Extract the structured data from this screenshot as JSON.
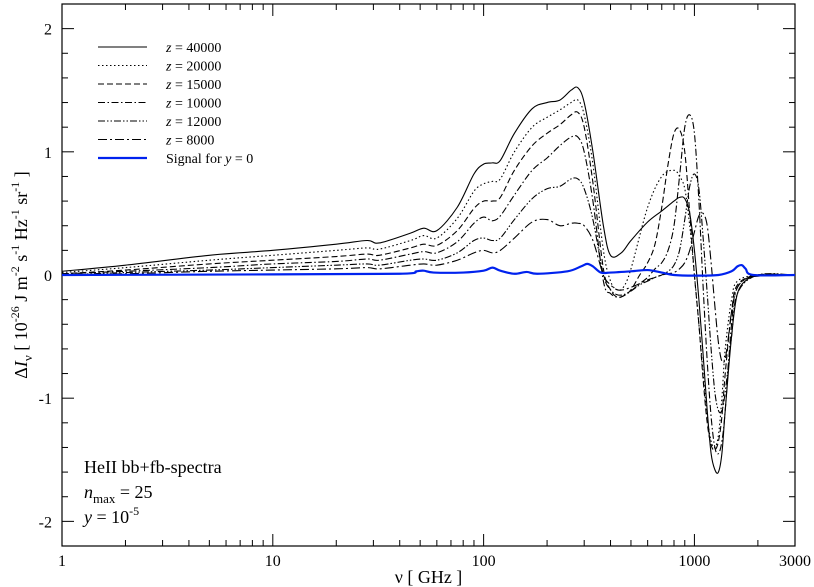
{
  "chart_data": {
    "type": "line",
    "xlabel": "ν [ GHz ]",
    "ylabel": "ΔI_ν [ 10^-26 J m^-2 s^-1 Hz^-1 sr^-1 ]",
    "ylabel_parts": {
      "delta": "Δ",
      "I": "I",
      "nu": "ν",
      "open": " [ 10",
      "exp26": "-26",
      "J": " J m",
      "exp2": "-2",
      "s": " s",
      "exp1a": "-1",
      "Hz": " Hz",
      "exp1b": "-1",
      "sr": " sr",
      "exp1c": "-1",
      "close": " ]"
    },
    "x_scale": "log",
    "xlim": [
      1,
      3000
    ],
    "ylim": [
      -2.2,
      2.2
    ],
    "x_ticks": [
      1,
      10,
      100,
      1000,
      3000
    ],
    "x_tick_labels": [
      "1",
      "10",
      "100",
      "1000",
      "3000"
    ],
    "y_ticks": [
      -2,
      -1,
      0,
      1,
      2
    ],
    "y_tick_labels": [
      "-2",
      "-1",
      "0",
      "1",
      "2"
    ],
    "legend_position": "top-left",
    "annotation": {
      "line1": "HeII bb+fb-spectra",
      "line2_var": "n",
      "line2_sub": "max",
      "line2_rest": " = 25",
      "line3_var": "y",
      "line3_mid": " = 10",
      "line3_exp": "-5"
    },
    "series": [
      {
        "name": "z = 40000",
        "label_var": "z",
        "label_rest": " = 40000",
        "color": "#000000",
        "dash": "",
        "width": 1.1,
        "x": [
          1,
          2,
          5,
          10,
          20,
          28,
          32,
          45,
          52,
          60,
          75,
          90,
          100,
          110,
          120,
          140,
          170,
          200,
          230,
          260,
          280,
          300,
          330,
          370,
          400,
          450,
          500,
          600,
          700,
          800,
          850,
          900,
          950,
          1000,
          1050,
          1100,
          1150,
          1200,
          1250,
          1300,
          1350,
          1400,
          1500,
          1600,
          1800,
          2000,
          2500,
          3000
        ],
        "y": [
          0.03,
          0.08,
          0.16,
          0.2,
          0.25,
          0.28,
          0.26,
          0.34,
          0.38,
          0.36,
          0.55,
          0.82,
          0.9,
          0.91,
          0.93,
          1.15,
          1.35,
          1.4,
          1.42,
          1.5,
          1.52,
          1.4,
          1.0,
          0.4,
          0.16,
          0.18,
          0.28,
          0.43,
          0.52,
          0.6,
          0.63,
          0.62,
          0.5,
          0.2,
          -0.2,
          -0.65,
          -1.1,
          -1.45,
          -1.58,
          -1.6,
          -1.45,
          -1.1,
          -0.5,
          -0.15,
          -0.03,
          -0.01,
          0.0,
          0.0
        ]
      },
      {
        "name": "z = 20000",
        "label_var": "z",
        "label_rest": " = 20000",
        "color": "#000000",
        "dash": "1.5,2.5",
        "width": 1.1,
        "x": [
          1,
          2,
          5,
          10,
          20,
          28,
          32,
          45,
          52,
          60,
          75,
          90,
          100,
          110,
          120,
          140,
          170,
          200,
          230,
          260,
          280,
          300,
          330,
          370,
          400,
          430,
          460,
          500,
          600,
          700,
          800,
          850,
          900,
          950,
          1000,
          1050,
          1100,
          1150,
          1200,
          1250,
          1300,
          1350,
          1400,
          1500,
          1600,
          2000,
          3000
        ],
        "y": [
          0.02,
          0.06,
          0.12,
          0.16,
          0.2,
          0.22,
          0.21,
          0.28,
          0.32,
          0.3,
          0.46,
          0.68,
          0.74,
          0.76,
          0.78,
          1.0,
          1.2,
          1.28,
          1.34,
          1.4,
          1.42,
          1.3,
          0.9,
          0.2,
          -0.05,
          -0.12,
          -0.1,
          0.05,
          0.55,
          0.8,
          0.85,
          0.8,
          0.7,
          0.4,
          0.0,
          -0.4,
          -0.8,
          -1.15,
          -1.35,
          -1.4,
          -1.3,
          -1.0,
          -0.6,
          -0.2,
          -0.05,
          0.0,
          0.0
        ]
      },
      {
        "name": "z = 15000",
        "label_var": "z",
        "label_rest": " = 15000",
        "color": "#000000",
        "dash": "6,3",
        "width": 1.1,
        "x": [
          1,
          2,
          5,
          10,
          20,
          28,
          32,
          45,
          52,
          60,
          75,
          90,
          100,
          110,
          120,
          140,
          170,
          200,
          230,
          260,
          280,
          300,
          330,
          370,
          400,
          430,
          460,
          500,
          550,
          600,
          650,
          700,
          750,
          800,
          850,
          900,
          950,
          1000,
          1050,
          1100,
          1150,
          1200,
          1250,
          1300,
          1350,
          1400,
          1500,
          1600,
          2000,
          3000
        ],
        "y": [
          0.01,
          0.04,
          0.09,
          0.12,
          0.15,
          0.17,
          0.16,
          0.22,
          0.25,
          0.24,
          0.36,
          0.54,
          0.6,
          0.6,
          0.63,
          0.85,
          1.05,
          1.15,
          1.22,
          1.3,
          1.32,
          1.2,
          0.75,
          0.05,
          -0.12,
          -0.18,
          -0.17,
          -0.12,
          0.0,
          0.1,
          0.25,
          0.55,
          0.9,
          1.15,
          1.18,
          1.0,
          0.5,
          0.0,
          -0.4,
          -0.85,
          -1.2,
          -1.38,
          -1.42,
          -1.35,
          -1.15,
          -0.8,
          -0.3,
          -0.08,
          0.0,
          0.0
        ]
      },
      {
        "name": "z = 10000",
        "label_var": "z",
        "label_rest": " = 10000",
        "color": "#000000",
        "dash": "7,2.5,1.5,2.5",
        "width": 1.1,
        "x": [
          1,
          2,
          5,
          10,
          20,
          28,
          32,
          45,
          52,
          60,
          75,
          90,
          100,
          110,
          120,
          140,
          170,
          200,
          230,
          260,
          280,
          300,
          330,
          370,
          400,
          430,
          460,
          500,
          550,
          600,
          650,
          700,
          750,
          800,
          850,
          900,
          950,
          1000,
          1050,
          1100,
          1150,
          1200,
          1250,
          1300,
          1350,
          1400,
          1500,
          1600,
          2000,
          3000
        ],
        "y": [
          0.01,
          0.03,
          0.06,
          0.09,
          0.11,
          0.13,
          0.12,
          0.17,
          0.19,
          0.18,
          0.27,
          0.42,
          0.47,
          0.44,
          0.48,
          0.65,
          0.85,
          0.95,
          1.05,
          1.12,
          1.12,
          1.0,
          0.6,
          -0.05,
          -0.15,
          -0.18,
          -0.17,
          -0.13,
          -0.07,
          -0.02,
          0.05,
          0.1,
          0.2,
          0.4,
          0.8,
          1.2,
          1.3,
          1.15,
          0.6,
          -0.1,
          -0.7,
          -1.15,
          -1.4,
          -1.45,
          -1.35,
          -1.1,
          -0.4,
          -0.1,
          0.0,
          0.0
        ]
      },
      {
        "name": "z = 12000",
        "label_var": "z",
        "label_rest": " = 12000",
        "color": "#000000",
        "dash": "7,2,1.5,2,1.5,2",
        "width": 1.1,
        "x": [
          1,
          2,
          5,
          10,
          20,
          28,
          32,
          45,
          52,
          60,
          75,
          90,
          100,
          110,
          120,
          140,
          170,
          200,
          230,
          260,
          280,
          300,
          330,
          370,
          400,
          430,
          460,
          500,
          550,
          600,
          650,
          700,
          750,
          800,
          850,
          900,
          950,
          1000,
          1050,
          1100,
          1150,
          1200,
          1250,
          1300,
          1350,
          1400,
          1500,
          1600,
          2000,
          3000
        ],
        "y": [
          0.0,
          0.02,
          0.04,
          0.06,
          0.08,
          0.09,
          0.08,
          0.12,
          0.13,
          0.12,
          0.18,
          0.28,
          0.3,
          0.28,
          0.3,
          0.45,
          0.62,
          0.7,
          0.72,
          0.78,
          0.78,
          0.7,
          0.45,
          0.0,
          -0.12,
          -0.16,
          -0.16,
          -0.13,
          -0.08,
          -0.05,
          -0.02,
          0.0,
          0.03,
          0.08,
          0.2,
          0.45,
          0.72,
          0.82,
          0.7,
          0.3,
          -0.15,
          -0.6,
          -0.95,
          -1.1,
          -1.1,
          -0.95,
          -0.5,
          -0.15,
          0.0,
          0.0
        ]
      },
      {
        "name": "z = 8000",
        "label_var": "z",
        "label_rest": " = 8000",
        "color": "#000000",
        "dash": "9,3,2,3",
        "width": 1.1,
        "x": [
          1,
          2,
          5,
          10,
          20,
          28,
          32,
          45,
          52,
          60,
          75,
          90,
          100,
          110,
          120,
          140,
          170,
          200,
          230,
          260,
          280,
          300,
          330,
          370,
          400,
          430,
          460,
          500,
          550,
          600,
          650,
          700,
          750,
          800,
          850,
          900,
          950,
          1000,
          1050,
          1100,
          1150,
          1200,
          1250,
          1300,
          1350,
          1400,
          1450,
          1500,
          1600,
          1800,
          2000,
          3000
        ],
        "y": [
          0.0,
          0.01,
          0.03,
          0.04,
          0.05,
          0.06,
          0.05,
          0.08,
          0.09,
          0.08,
          0.12,
          0.18,
          0.2,
          0.18,
          0.2,
          0.3,
          0.43,
          0.45,
          0.4,
          0.42,
          0.42,
          0.4,
          0.28,
          0.0,
          -0.08,
          -0.12,
          -0.12,
          -0.1,
          -0.07,
          -0.04,
          -0.02,
          0.0,
          0.01,
          0.02,
          0.05,
          0.1,
          0.2,
          0.35,
          0.48,
          0.5,
          0.4,
          0.1,
          -0.25,
          -0.55,
          -0.7,
          -0.68,
          -0.5,
          -0.3,
          -0.1,
          -0.02,
          0.0,
          0.0
        ]
      },
      {
        "name": "Signal for y = 0",
        "label_plain": "Signal for ",
        "label_var": "y",
        "label_rest": " = 0",
        "color": "#0022ee",
        "dash": "",
        "width": 2.2,
        "x": [
          1,
          10,
          40,
          48,
          52,
          58,
          80,
          100,
          110,
          120,
          140,
          160,
          180,
          250,
          290,
          310,
          330,
          360,
          400,
          500,
          600,
          700,
          800,
          1000,
          1300,
          1500,
          1600,
          1680,
          1750,
          1900,
          3000
        ],
        "y": [
          0.0,
          0.005,
          0.01,
          0.03,
          0.035,
          0.02,
          0.02,
          0.035,
          0.06,
          0.035,
          0.01,
          0.025,
          0.01,
          0.03,
          0.07,
          0.09,
          0.07,
          0.02,
          0.02,
          0.03,
          0.04,
          0.02,
          0.0,
          -0.005,
          0.0,
          0.03,
          0.07,
          0.08,
          0.05,
          0.0,
          0.0
        ]
      }
    ]
  }
}
